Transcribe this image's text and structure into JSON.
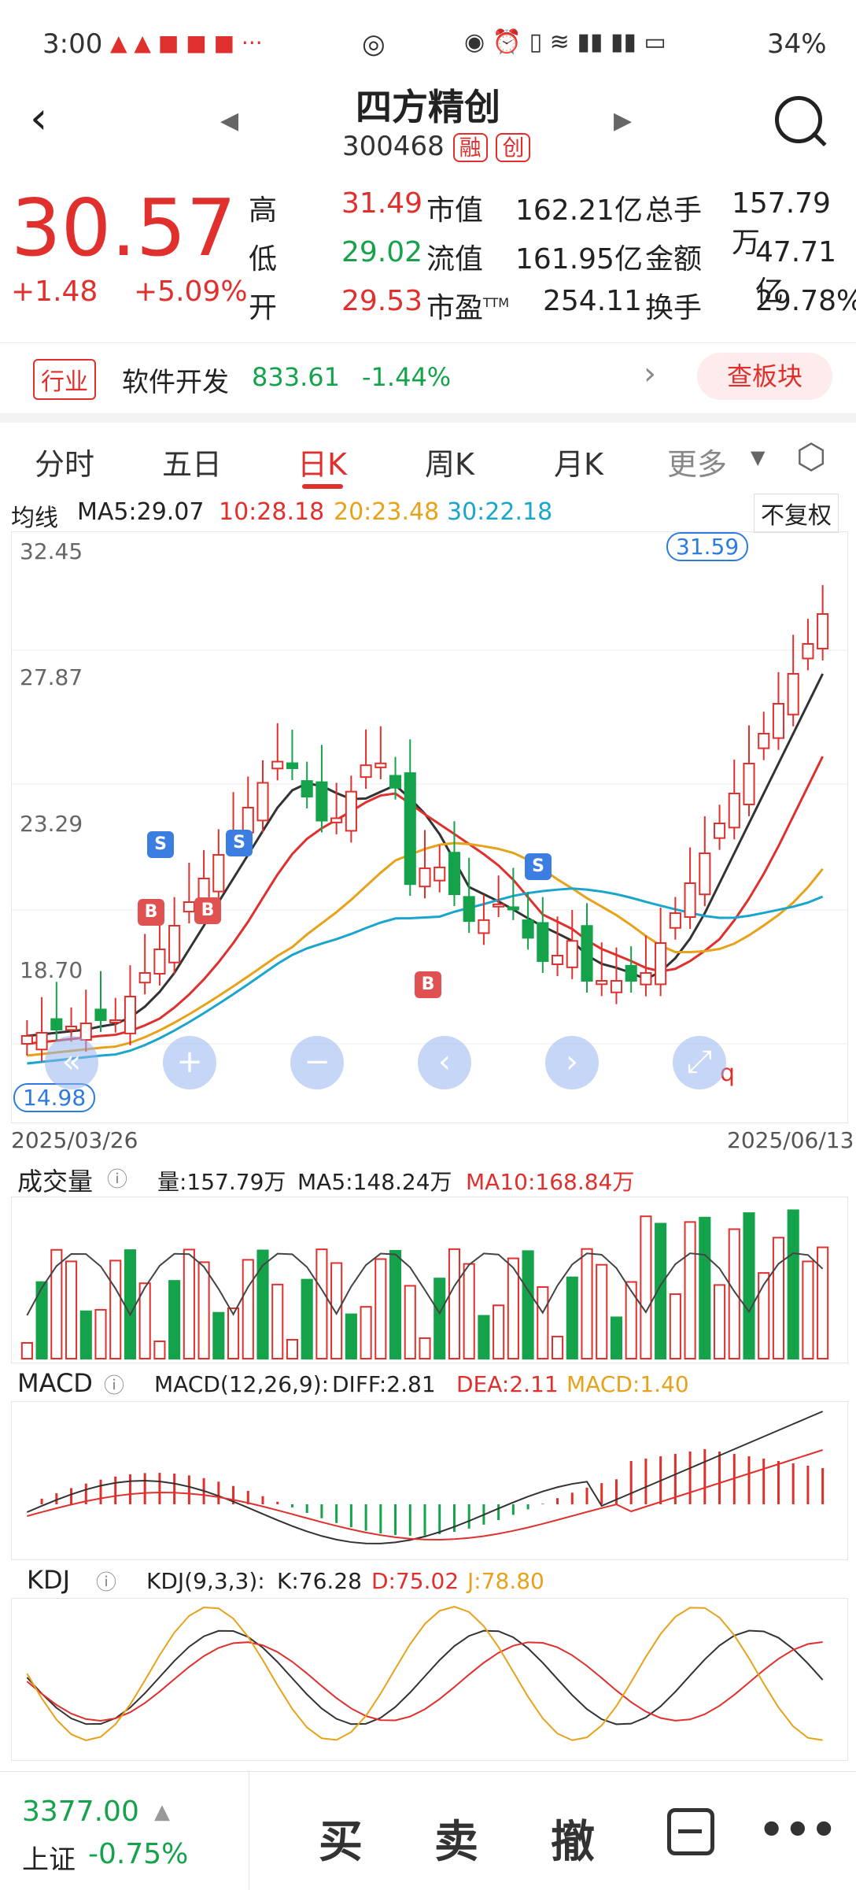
{
  "status_bar": {
    "time": "3:00",
    "battery": "34%",
    "net": "4G"
  },
  "header": {
    "title": "四方精创",
    "code": "300468",
    "tag1": "融",
    "tag2": "创"
  },
  "quote": {
    "price": "30.57",
    "change": "+1.48",
    "change_pct": "+5.09%",
    "rows": [
      {
        "k1": "高",
        "v1": "31.49",
        "k2": "市值",
        "v2": "162.21亿",
        "k3": "总手",
        "v3": "157.79万"
      },
      {
        "k1": "低",
        "v1": "29.02",
        "k2": "流值",
        "v2": "161.95亿",
        "k3": "金额",
        "v3": "47.71亿"
      },
      {
        "k1": "开",
        "v1": "29.53",
        "k2": "市盈",
        "k2sup": "TTM",
        "v2": "254.11",
        "k3": "换手",
        "v3": "29.78%"
      }
    ]
  },
  "industry": {
    "tag": "行业",
    "name": "软件开发",
    "value": "833.61",
    "change": "-1.44%",
    "button": "查板块"
  },
  "tabs": [
    {
      "label": "分时"
    },
    {
      "label": "五日"
    },
    {
      "label": "日K"
    },
    {
      "label": "周K"
    },
    {
      "label": "月K"
    },
    {
      "label": "更多"
    }
  ],
  "ma": {
    "label": "均线",
    "ma5": "MA5:29.07",
    "ma10": "10:28.18",
    "ma20": "20:23.48",
    "ma30": "30:22.18",
    "adjust": "不复权"
  },
  "kline": {
    "y_labels": [
      "32.45",
      "27.87",
      "23.29",
      "18.70"
    ],
    "max_label": "31.59",
    "min_label": "14.98",
    "date_start": "2025/03/26",
    "date_end": "2025/06/13",
    "q_mark": "q"
  },
  "volume": {
    "title": "成交量",
    "vol": "量:157.79万",
    "ma5": "MA5:148.24万",
    "ma10": "MA10:168.84万"
  },
  "macd": {
    "title": "MACD",
    "params": "MACD(12,26,9):",
    "diff": "DIFF:2.81",
    "dea": "DEA:2.11",
    "macd": "MACD:1.40"
  },
  "kdj": {
    "title": "KDJ",
    "params": "KDJ(9,3,3):",
    "k": "K:76.28",
    "d": "D:75.02",
    "j": "J:78.80"
  },
  "bottom": {
    "index_value": "3377.00",
    "index_name": "上证",
    "index_change": "-0.75%",
    "buy": "买",
    "sell": "卖",
    "cancel": "撤"
  },
  "chart_data": {
    "type": "candlestick",
    "x_start": "2025/03/26",
    "x_end": "2025/06/13",
    "ylim": [
      14.98,
      32.45
    ],
    "high": 31.59,
    "low": 14.98,
    "last": {
      "open": 29.53,
      "high": 31.49,
      "low": 29.02,
      "close": 30.57
    }
  }
}
